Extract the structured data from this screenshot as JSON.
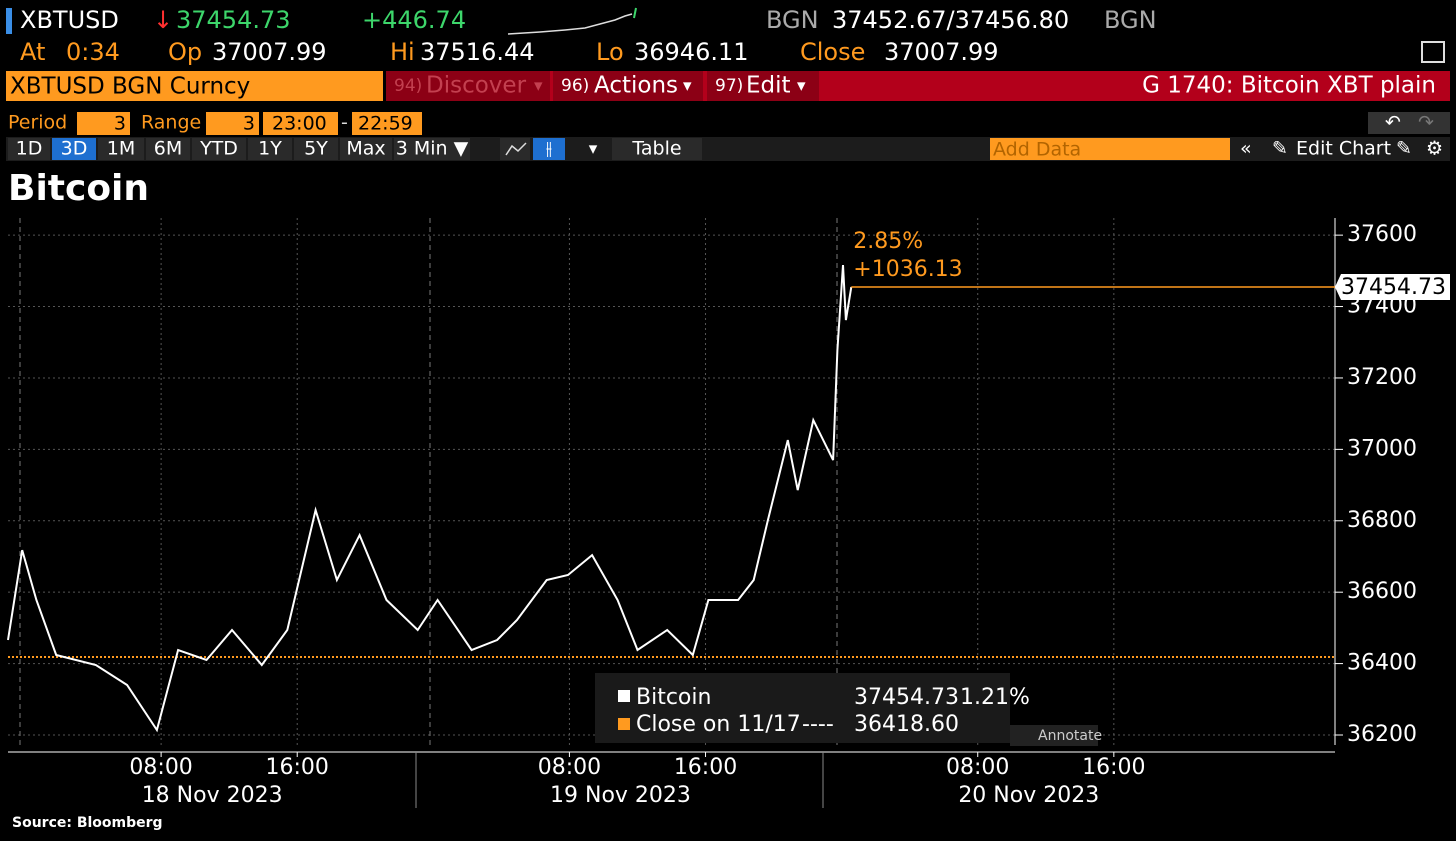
{
  "header": {
    "ticker": "XBTUSD",
    "last": "37454.73",
    "change": "+446.74",
    "source1": "BGN",
    "bid_ask": "37452.67/37456.80",
    "source2": "BGN",
    "at_label": "At",
    "at": "0:34",
    "op_label": "Op",
    "op": "37007.99",
    "hi_label": "Hi",
    "hi": "37516.44",
    "lo_label": "Lo",
    "lo": "36946.11",
    "close_label": "Close",
    "close": "37007.99"
  },
  "menu": {
    "security": "XBTUSD BGN Curncy",
    "items": [
      {
        "num": "94)",
        "label": "Discover"
      },
      {
        "num": "96)",
        "label": "Actions"
      },
      {
        "num": "97)",
        "label": "Edit"
      }
    ],
    "function": "G 1740: Bitcoin XBT plain"
  },
  "toolbar": {
    "period_label": "Period",
    "period": "3",
    "range_label": "Range",
    "range": "3",
    "start": "23:00",
    "dash": "-",
    "end": "22:59",
    "buttons": [
      "1D",
      "3D",
      "1M",
      "6M",
      "YTD",
      "1Y",
      "5Y",
      "Max",
      "3 Min ▼"
    ],
    "table": "Table",
    "add_data": "Add Data",
    "edit_chart": "Edit Chart"
  },
  "chart_data": {
    "type": "line",
    "title": "Bitcoin",
    "source": "Source: Bloomberg",
    "x": [
      "2023-11-17T23:00",
      "2023-11-17T23:50",
      "2023-11-18T00:40",
      "2023-11-18T01:50",
      "2023-11-18T04:10",
      "2023-11-18T06:00",
      "2023-11-18T07:45",
      "2023-11-18T09:00",
      "2023-11-18T10:40",
      "2023-11-18T12:10",
      "2023-11-18T13:55",
      "2023-11-18T15:25",
      "2023-11-18T17:05",
      "2023-11-18T18:20",
      "2023-11-18T19:40",
      "2023-11-18T21:15",
      "2023-11-18T23:05",
      "2023-11-19T00:15",
      "2023-11-19T02:15",
      "2023-11-19T03:45",
      "2023-11-19T04:55",
      "2023-11-19T06:40",
      "2023-11-19T07:55",
      "2023-11-19T09:20",
      "2023-11-19T10:50",
      "2023-11-19T12:00",
      "2023-11-19T13:45",
      "2023-11-19T15:15",
      "2023-11-19T16:10",
      "2023-11-19T17:55",
      "2023-11-19T18:50",
      "2023-11-19T19:40",
      "2023-11-19T20:50",
      "2023-11-19T21:25",
      "2023-11-19T22:20",
      "2023-11-19T23:30",
      "2023-11-19T23:45",
      "2023-11-20T00:05",
      "2023-11-20T00:15",
      "2023-11-20T00:34"
    ],
    "series": [
      {
        "name": "Bitcoin",
        "color": "#ffffff",
        "values": [
          36466,
          36718,
          36578,
          36424,
          36396,
          36340,
          36214,
          36438,
          36410,
          36494,
          36396,
          36494,
          36830,
          36634,
          36760,
          36578,
          36494,
          36578,
          36438,
          36466,
          36522,
          36634,
          36648,
          36704,
          36578,
          36438,
          36494,
          36424,
          36578,
          36578,
          36634,
          36802,
          37026,
          36886,
          37082,
          36970,
          37278,
          37516,
          37362,
          37454.73
        ]
      }
    ],
    "reference": {
      "name": "Close on 11/17",
      "value": 36418.6,
      "value_label": "36418.60",
      "color": "#ff9a1f"
    },
    "legend": {
      "change_pct": "1.21%",
      "dashes": "----"
    },
    "annotations": {
      "pct": "2.85%",
      "abs": "+1036.13",
      "button": "Annotate"
    },
    "xlim": [
      "2023-11-17T23:00",
      "2023-11-21T05:00"
    ],
    "xticks": [
      {
        "value": "2023-11-18T08:00",
        "label": "08:00"
      },
      {
        "value": "2023-11-18T16:00",
        "label": "16:00"
      },
      {
        "value": "2023-11-19T08:00",
        "label": "08:00"
      },
      {
        "value": "2023-11-19T16:00",
        "label": "16:00"
      },
      {
        "value": "2023-11-20T08:00",
        "label": "08:00"
      },
      {
        "value": "2023-11-20T16:00",
        "label": "16:00"
      }
    ],
    "days": [
      {
        "value": "2023-11-18",
        "label": "18 Nov 2023"
      },
      {
        "value": "2023-11-19",
        "label": "19 Nov 2023"
      },
      {
        "value": "2023-11-20",
        "label": "20 Nov 2023"
      }
    ],
    "ylim": [
      36172,
      37648
    ],
    "yticks": [
      36200,
      36400,
      36600,
      36800,
      37000,
      37200,
      37400,
      37600
    ],
    "grid": true
  }
}
